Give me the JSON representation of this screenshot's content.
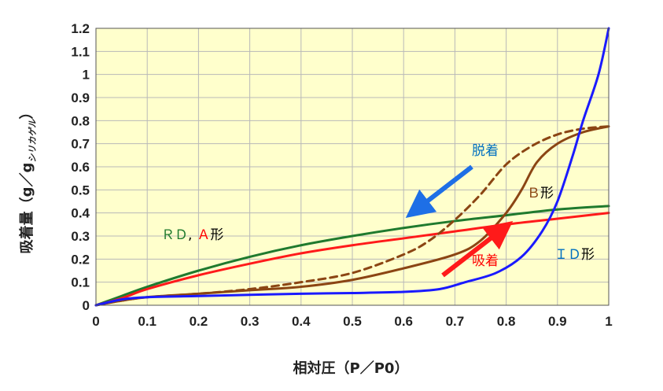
{
  "chart_data": {
    "type": "line",
    "title": "",
    "xlabel": "相対圧（P／P0）",
    "ylabel_main": "吸着量（g／g",
    "ylabel_sub": "シリカゲル",
    "ylabel_close": "）",
    "xlim": [
      0,
      1
    ],
    "ylim": [
      0,
      1.2
    ],
    "xticks": [
      "0",
      "0.1",
      "0.2",
      "0.3",
      "0.4",
      "0.5",
      "0.6",
      "0.7",
      "0.8",
      "0.9",
      "1"
    ],
    "yticks": [
      "0",
      "0.1",
      "0.2",
      "0.3",
      "0.4",
      "0.5",
      "0.6",
      "0.7",
      "0.8",
      "0.9",
      "1",
      "1.1",
      "1.2"
    ],
    "grid": true,
    "plot_background": "#ffffcc",
    "series": [
      {
        "color": "#1f7a2e",
        "style": "solid",
        "points": [
          [
            0,
            0
          ],
          [
            0.05,
            0.04
          ],
          [
            0.1,
            0.08
          ],
          [
            0.2,
            0.15
          ],
          [
            0.3,
            0.21
          ],
          [
            0.4,
            0.26
          ],
          [
            0.5,
            0.3
          ],
          [
            0.6,
            0.335
          ],
          [
            0.7,
            0.365
          ],
          [
            0.8,
            0.39
          ],
          [
            0.9,
            0.415
          ],
          [
            1,
            0.43
          ]
        ]
      },
      {
        "color": "#ff1a1a",
        "style": "solid",
        "points": [
          [
            0,
            0
          ],
          [
            0.05,
            0.03
          ],
          [
            0.1,
            0.07
          ],
          [
            0.2,
            0.13
          ],
          [
            0.3,
            0.18
          ],
          [
            0.4,
            0.225
          ],
          [
            0.5,
            0.26
          ],
          [
            0.6,
            0.29
          ],
          [
            0.7,
            0.32
          ],
          [
            0.8,
            0.35
          ],
          [
            0.9,
            0.375
          ],
          [
            1,
            0.4
          ]
        ]
      },
      {
        "color": "#8b4513",
        "style": "solid",
        "points": [
          [
            0,
            0
          ],
          [
            0.05,
            0.02
          ],
          [
            0.1,
            0.035
          ],
          [
            0.2,
            0.05
          ],
          [
            0.3,
            0.065
          ],
          [
            0.4,
            0.08
          ],
          [
            0.5,
            0.11
          ],
          [
            0.6,
            0.16
          ],
          [
            0.7,
            0.22
          ],
          [
            0.75,
            0.28
          ],
          [
            0.8,
            0.4
          ],
          [
            0.83,
            0.5
          ],
          [
            0.86,
            0.62
          ],
          [
            0.9,
            0.7
          ],
          [
            0.95,
            0.75
          ],
          [
            1,
            0.775
          ]
        ]
      },
      {
        "color": "#8b4513",
        "style": "dashed",
        "points": [
          [
            0,
            0
          ],
          [
            0.05,
            0.02
          ],
          [
            0.1,
            0.035
          ],
          [
            0.2,
            0.05
          ],
          [
            0.3,
            0.07
          ],
          [
            0.4,
            0.1
          ],
          [
            0.5,
            0.14
          ],
          [
            0.6,
            0.22
          ],
          [
            0.65,
            0.28
          ],
          [
            0.7,
            0.37
          ],
          [
            0.75,
            0.48
          ],
          [
            0.8,
            0.61
          ],
          [
            0.85,
            0.69
          ],
          [
            0.9,
            0.74
          ],
          [
            0.95,
            0.765
          ],
          [
            1,
            0.775
          ]
        ]
      },
      {
        "color": "#1a1aff",
        "style": "solid",
        "points": [
          [
            0,
            0
          ],
          [
            0.05,
            0.025
          ],
          [
            0.1,
            0.035
          ],
          [
            0.2,
            0.04
          ],
          [
            0.3,
            0.045
          ],
          [
            0.4,
            0.05
          ],
          [
            0.5,
            0.053
          ],
          [
            0.6,
            0.058
          ],
          [
            0.67,
            0.07
          ],
          [
            0.72,
            0.1
          ],
          [
            0.78,
            0.14
          ],
          [
            0.83,
            0.21
          ],
          [
            0.87,
            0.32
          ],
          [
            0.9,
            0.45
          ],
          [
            0.93,
            0.65
          ],
          [
            0.95,
            0.8
          ],
          [
            0.98,
            1.0
          ],
          [
            1,
            1.2
          ]
        ]
      }
    ],
    "annotations": {
      "desorption": {
        "text": "脱着",
        "color": "#0070c0"
      },
      "adsorption": {
        "text": "吸着",
        "color": "#ff0000"
      },
      "rd_a": {
        "r": "ＲＤ",
        "comma": ",",
        "a": "Ａ",
        "kei": "形"
      },
      "b": {
        "b": "Ｂ",
        "kei": "形"
      },
      "id": {
        "id": "ＩＤ",
        "kei": "形"
      }
    },
    "label_colors": {
      "rd": "#1f7a2e",
      "a": "#ff0000",
      "b": "#8b4513",
      "id": "#0070c0",
      "kei": "#000000"
    }
  }
}
